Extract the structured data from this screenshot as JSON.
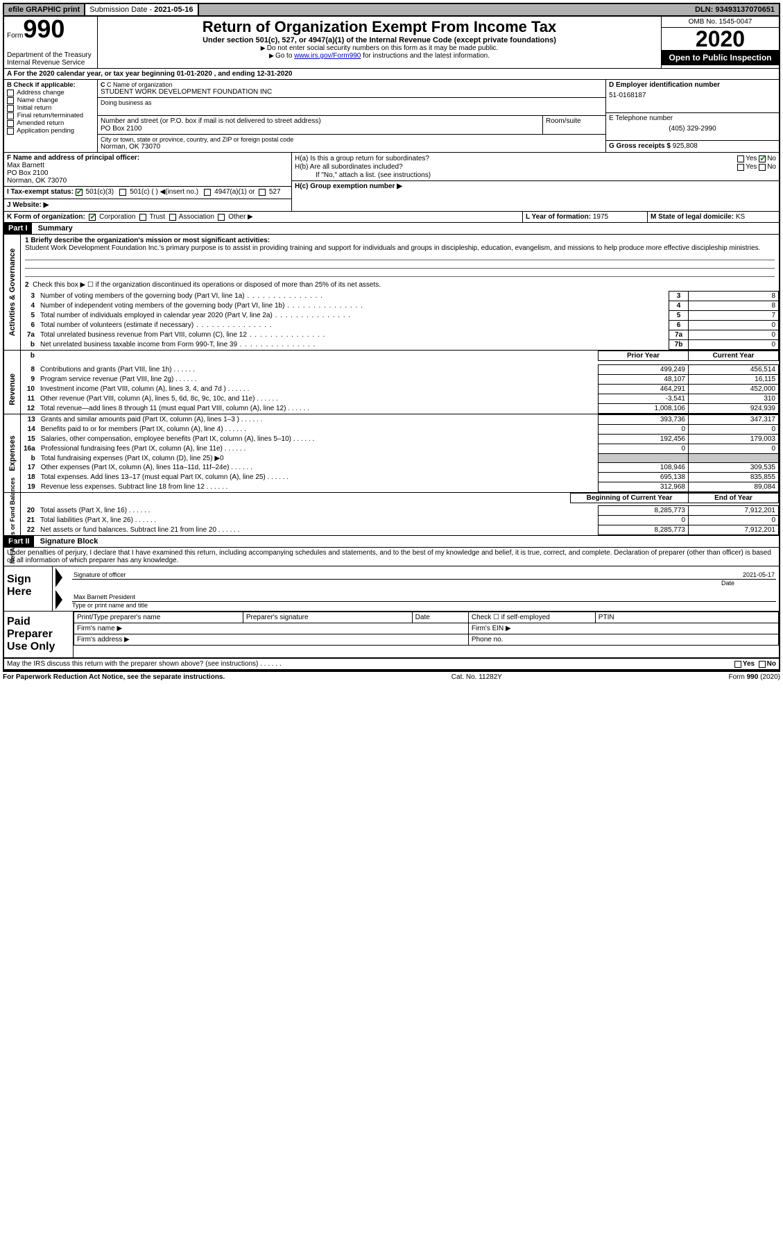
{
  "topbar": {
    "efile": "efile GRAPHIC print",
    "subdate_lbl": "Submission Date -",
    "subdate": "2021-05-16",
    "dln": "DLN: 93493137070651"
  },
  "header": {
    "form_word": "Form",
    "form_no": "990",
    "dept": "Department of the Treasury\nInternal Revenue Service",
    "title": "Return of Organization Exempt From Income Tax",
    "sub": "Under section 501(c), 527, or 4947(a)(1) of the Internal Revenue Code (except private foundations)",
    "note1": "Do not enter social security numbers on this form as it may be made public.",
    "note2_pre": "Go to ",
    "note2_link": "www.irs.gov/Form990",
    "note2_post": " for instructions and the latest information.",
    "omb": "OMB No. 1545-0047",
    "year": "2020",
    "open": "Open to Public Inspection"
  },
  "period": "A For the 2020 calendar year, or tax year beginning 01-01-2020     , and ending 12-31-2020",
  "B": {
    "lbl": "B Check if applicable:",
    "opts": [
      "Address change",
      "Name change",
      "Initial return",
      "Final return/terminated",
      "Amended return",
      "Application pending"
    ]
  },
  "C": {
    "name_lbl": "C Name of organization",
    "name": "STUDENT WORK DEVELOPMENT FOUNDATION INC",
    "dba_lbl": "Doing business as",
    "dba": "",
    "addr_lbl": "Number and street (or P.O. box if mail is not delivered to street address)",
    "room_lbl": "Room/suite",
    "addr": "PO Box 2100",
    "city_lbl": "City or town, state or province, country, and ZIP or foreign postal code",
    "city": "Norman, OK  73070"
  },
  "D": {
    "lbl": "D Employer identification number",
    "val": "51-0168187"
  },
  "E": {
    "lbl": "E Telephone number",
    "val": "(405) 329-2990"
  },
  "G": {
    "lbl": "G Gross receipts $",
    "val": "925,808"
  },
  "F": {
    "lbl": "F  Name and address of principal officer:",
    "name": "Max Barnett",
    "addr1": "PO Box 2100",
    "addr2": "Norman, OK  73070"
  },
  "H": {
    "a": "H(a)  Is this a group return for subordinates?",
    "b": "H(b)  Are all subordinates included?",
    "b_note": "If \"No,\" attach a list. (see instructions)",
    "c": "H(c)  Group exemption number ▶",
    "yes": "Yes",
    "no": "No"
  },
  "I": {
    "lbl": "I    Tax-exempt status:",
    "opt1": "501(c)(3)",
    "opt2": "501(c) (   ) ◀(insert no.)",
    "opt3": "4947(a)(1) or",
    "opt4": "527"
  },
  "J": {
    "lbl": "J   Website: ▶",
    "val": ""
  },
  "K": {
    "lbl": "K Form of organization:",
    "opts": [
      "Corporation",
      "Trust",
      "Association",
      "Other ▶"
    ]
  },
  "L": {
    "lbl": "L Year of formation:",
    "val": "1975"
  },
  "M": {
    "lbl": "M State of legal domicile:",
    "val": "KS"
  },
  "part1": {
    "hdr": "Part I",
    "title": "Summary"
  },
  "summary": {
    "q1_lbl": "1  Briefly describe the organization's mission or most significant activities:",
    "q1_txt": "Student Work Development Foundation Inc.'s primary purpose is to assist in providing training and support for individuals and groups in discipleship, education, evangelism, and missions to help produce more effective discipleship ministries.",
    "q2": "Check this box ▶ ☐  if the organization discontinued its operations or disposed of more than 25% of its net assets.",
    "rows_governance": [
      {
        "n": "3",
        "d": "Number of voting members of the governing body (Part VI, line 1a)",
        "box": "3",
        "v": "8"
      },
      {
        "n": "4",
        "d": "Number of independent voting members of the governing body (Part VI, line 1b)",
        "box": "4",
        "v": "8"
      },
      {
        "n": "5",
        "d": "Total number of individuals employed in calendar year 2020 (Part V, line 2a)",
        "box": "5",
        "v": "7"
      },
      {
        "n": "6",
        "d": "Total number of volunteers (estimate if necessary)",
        "box": "6",
        "v": "0"
      },
      {
        "n": "7a",
        "d": "Total unrelated business revenue from Part VIII, column (C), line 12",
        "box": "7a",
        "v": "0"
      },
      {
        "n": "b",
        "d": "Net unrelated business taxable income from Form 990-T, line 39",
        "box": "7b",
        "v": "0"
      }
    ],
    "prior_lbl": "Prior Year",
    "curr_lbl": "Current Year",
    "revenue": [
      {
        "n": "8",
        "d": "Contributions and grants (Part VIII, line 1h)",
        "p": "499,249",
        "c": "456,514"
      },
      {
        "n": "9",
        "d": "Program service revenue (Part VIII, line 2g)",
        "p": "48,107",
        "c": "16,115"
      },
      {
        "n": "10",
        "d": "Investment income (Part VIII, column (A), lines 3, 4, and 7d )",
        "p": "464,291",
        "c": "452,000"
      },
      {
        "n": "11",
        "d": "Other revenue (Part VIII, column (A), lines 5, 6d, 8c, 9c, 10c, and 11e)",
        "p": "-3,541",
        "c": "310"
      },
      {
        "n": "12",
        "d": "Total revenue—add lines 8 through 11 (must equal Part VIII, column (A), line 12)",
        "p": "1,008,106",
        "c": "924,939"
      }
    ],
    "expenses": [
      {
        "n": "13",
        "d": "Grants and similar amounts paid (Part IX, column (A), lines 1–3 )",
        "p": "393,736",
        "c": "347,317"
      },
      {
        "n": "14",
        "d": "Benefits paid to or for members (Part IX, column (A), line 4)",
        "p": "0",
        "c": "0"
      },
      {
        "n": "15",
        "d": "Salaries, other compensation, employee benefits (Part IX, column (A), lines 5–10)",
        "p": "192,456",
        "c": "179,003"
      },
      {
        "n": "16a",
        "d": "Professional fundraising fees (Part IX, column (A), line 11e)",
        "p": "0",
        "c": "0"
      },
      {
        "n": "b",
        "d": "Total fundraising expenses (Part IX, column (D), line 25) ▶0",
        "grey": true
      },
      {
        "n": "17",
        "d": "Other expenses (Part IX, column (A), lines 11a–11d, 11f–24e)",
        "p": "108,946",
        "c": "309,535"
      },
      {
        "n": "18",
        "d": "Total expenses. Add lines 13–17 (must equal Part IX, column (A), line 25)",
        "p": "695,138",
        "c": "835,855"
      },
      {
        "n": "19",
        "d": "Revenue less expenses. Subtract line 18 from line 12",
        "p": "312,968",
        "c": "89,084"
      }
    ],
    "begin_lbl": "Beginning of Current Year",
    "end_lbl": "End of Year",
    "netassets": [
      {
        "n": "20",
        "d": "Total assets (Part X, line 16)",
        "p": "8,285,773",
        "c": "7,912,201"
      },
      {
        "n": "21",
        "d": "Total liabilities (Part X, line 26)",
        "p": "0",
        "c": "0"
      },
      {
        "n": "22",
        "d": "Net assets or fund balances. Subtract line 21 from line 20",
        "p": "8,285,773",
        "c": "7,912,201"
      }
    ]
  },
  "side": {
    "gov": "Activities & Governance",
    "rev": "Revenue",
    "exp": "Expenses",
    "net": "Net Assets or Fund Balances"
  },
  "part2": {
    "hdr": "Part II",
    "title": "Signature Block"
  },
  "sig": {
    "decl": "Under penalties of perjury, I declare that I have examined this return, including accompanying schedules and statements, and to the best of my knowledge and belief, it is true, correct, and complete. Declaration of preparer (other than officer) is based on all information of which preparer has any knowledge.",
    "here": "Sign Here",
    "sigoff": "Signature of officer",
    "date": "Date",
    "date_val": "2021-05-17",
    "name": "Max Barnett  President",
    "name_lbl": "Type or print name and title",
    "paid": "Paid Preparer Use Only",
    "p_name": "Print/Type preparer's name",
    "p_sig": "Preparer's signature",
    "p_date": "Date",
    "p_chk": "Check ☐ if self-employed",
    "p_ptin": "PTIN",
    "p_firm": "Firm's name    ▶",
    "p_ein": "Firm's EIN ▶",
    "p_addr": "Firm's address ▶",
    "p_phone": "Phone no.",
    "discuss": "May the IRS discuss this return with the preparer shown above? (see instructions)"
  },
  "footer": {
    "pra": "For Paperwork Reduction Act Notice, see the separate instructions.",
    "cat": "Cat. No. 11282Y",
    "form": "Form 990 (2020)"
  }
}
